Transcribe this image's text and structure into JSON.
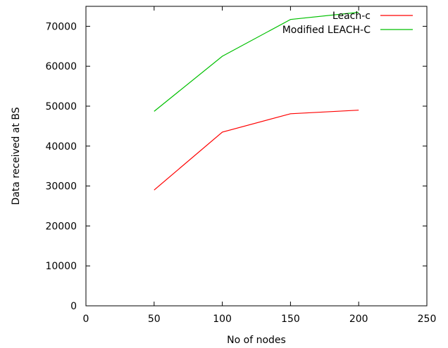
{
  "chart_data": {
    "type": "line",
    "xlabel": "No of nodes",
    "ylabel": "Data received at BS",
    "xlim": [
      0,
      250
    ],
    "ylim": [
      0,
      75000
    ],
    "x_ticks": [
      0,
      50,
      100,
      150,
      200,
      250
    ],
    "y_ticks": [
      0,
      10000,
      20000,
      30000,
      40000,
      50000,
      60000,
      70000
    ],
    "grid": false,
    "legend_position": "top-right",
    "x": [
      50,
      100,
      150,
      200
    ],
    "series": [
      {
        "name": "Leach-c",
        "color": "#ff0000",
        "values": [
          29000,
          43500,
          48100,
          49000
        ]
      },
      {
        "name": "Modified LEACH-C",
        "color": "#00c000",
        "values": [
          48700,
          62500,
          71700,
          73500
        ]
      }
    ]
  }
}
